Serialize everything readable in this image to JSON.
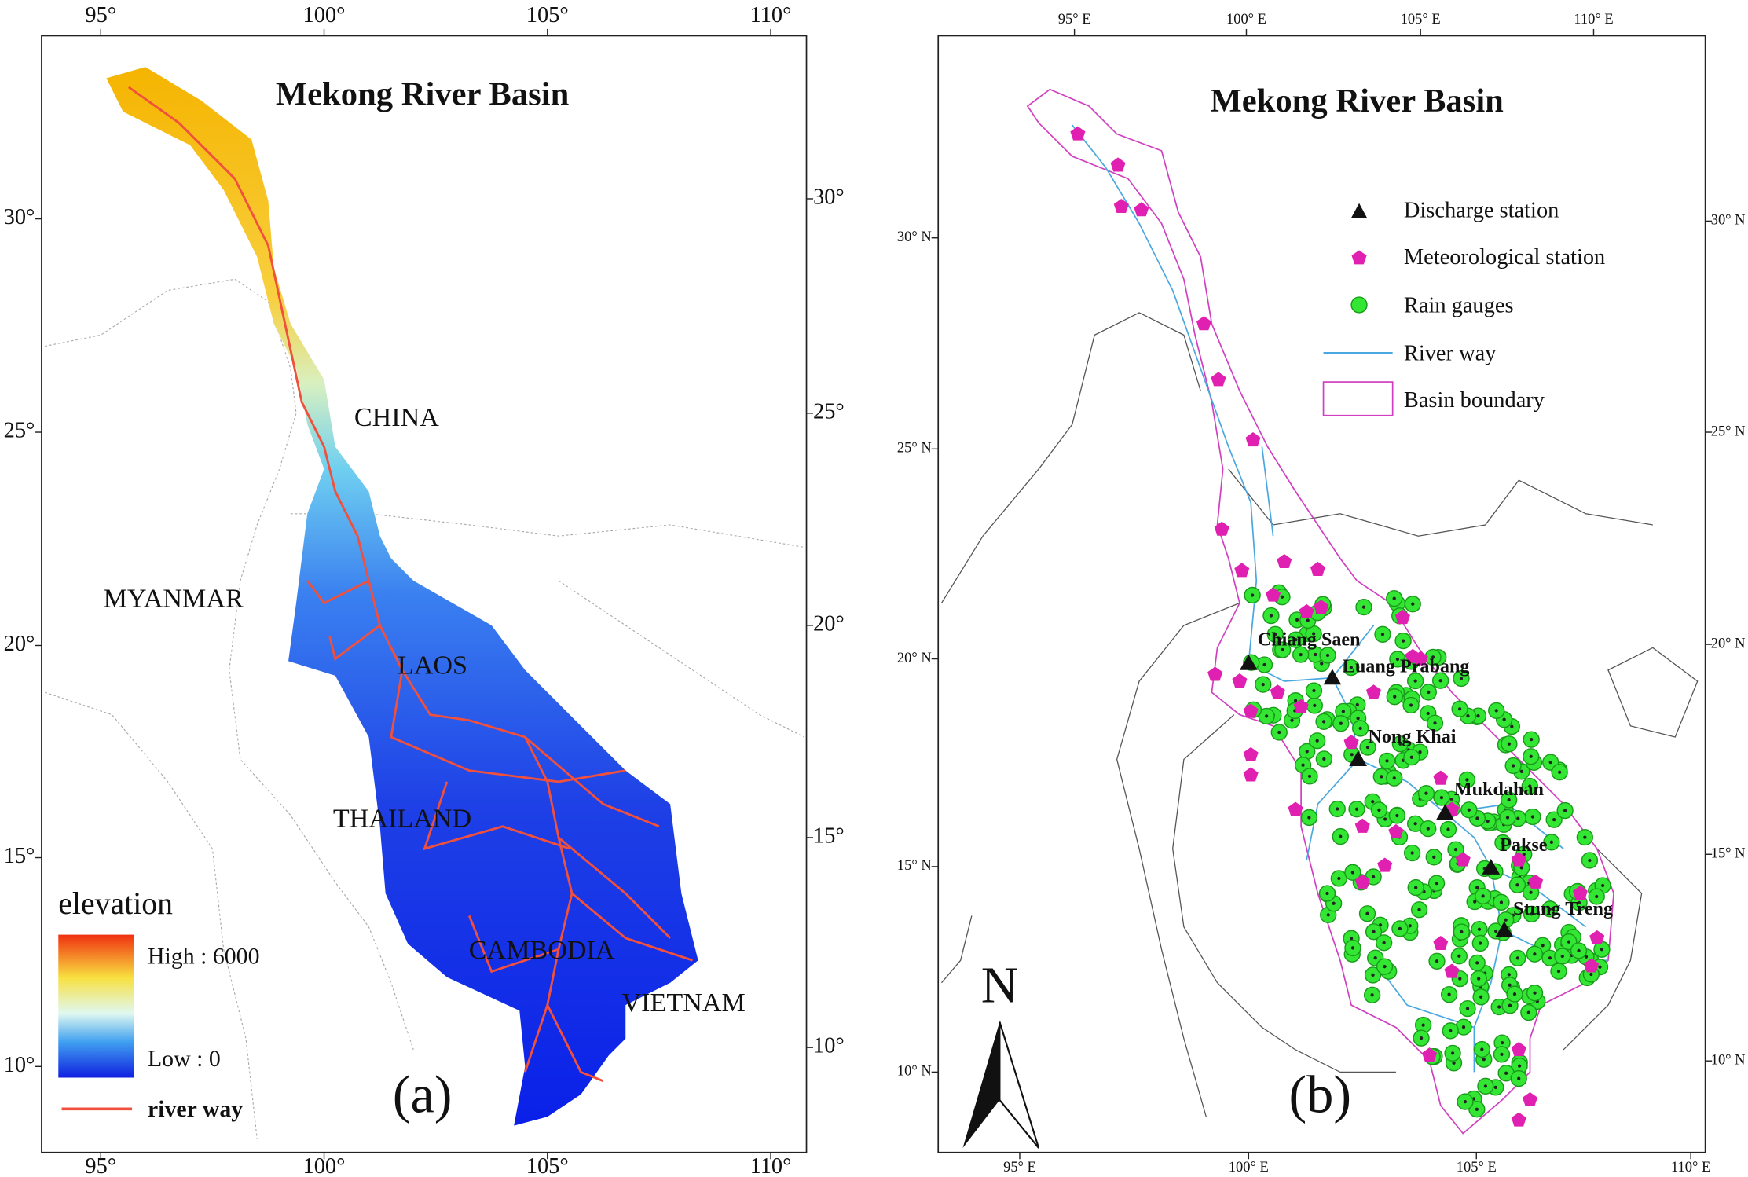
{
  "panel_a": {
    "title": "Mekong River Basin",
    "label": "(a)",
    "x_ticks": [
      "95°",
      "100°",
      "105°",
      "110°"
    ],
    "y_ticks_left": [
      "30°",
      "25°",
      "20°",
      "15°",
      "10°"
    ],
    "y_ticks_right": [
      "30°",
      "25°",
      "20°",
      "15°",
      "10°"
    ],
    "countries": [
      "CHINA",
      "MYANMAR",
      "LAOS",
      "THAILAND",
      "CAMBODIA",
      "VIETNAM"
    ],
    "legend": {
      "title": "elevation",
      "high": "High : 6000",
      "low": "Low : 0",
      "river": "river way"
    }
  },
  "panel_b": {
    "title": "Mekong River Basin",
    "label": "(b)",
    "north": "N",
    "x_ticks_top": [
      "95° E",
      "100° E",
      "105° E",
      "110° E"
    ],
    "x_ticks_bottom": [
      "95° E",
      "100° E",
      "105° E",
      "110° E"
    ],
    "y_ticks_left": [
      "30° N",
      "25° N",
      "20° N",
      "15° N",
      "10° N"
    ],
    "y_ticks_right": [
      "30° N",
      "25° N",
      "20° N",
      "15° N",
      "10° N"
    ],
    "legend": [
      "Discharge station",
      "Meteorological station",
      "Rain gauges",
      "River way",
      "Basin boundary"
    ],
    "stations": [
      "Chiang Saen",
      "Luang Prabang",
      "Nong Khai",
      "Mukdahan",
      "Pakse",
      "Stung Treng"
    ]
  }
}
